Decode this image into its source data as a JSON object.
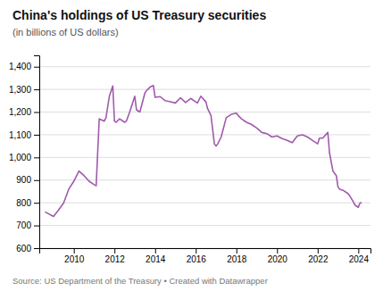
{
  "chart_data": {
    "type": "line",
    "title": "China's holdings of US Treasury securities",
    "subtitle": "(in billions of US dollars)",
    "source": "Source: US Department of the Treasury • Created with Datawrapper",
    "color": "#a05aad",
    "grid": true,
    "ylim": [
      600,
      1450
    ],
    "yticks": [
      600,
      700,
      800,
      900,
      {
        "value": 1000,
        "label": "1,000"
      },
      {
        "value": 1100,
        "label": "1,100"
      },
      {
        "value": 1200,
        "label": "1,200"
      },
      {
        "value": 1300,
        "label": "1,300"
      },
      {
        "value": 1400,
        "label": "1,400"
      }
    ],
    "xlim": [
      2008.3,
      2024.6
    ],
    "xticks": [
      2010,
      2012,
      2014,
      2016,
      2018,
      2020,
      2022,
      2024
    ],
    "x": [
      2008.583,
      2009.0,
      2009.25,
      2009.5,
      2009.75,
      2010.0,
      2010.25,
      2010.5,
      2010.75,
      2011.0,
      2011.1,
      2011.25,
      2011.5,
      2011.583,
      2011.75,
      2011.917,
      2012.0,
      2012.083,
      2012.25,
      2012.5,
      2012.583,
      2012.75,
      2013.0,
      2013.083,
      2013.25,
      2013.5,
      2013.583,
      2013.75,
      2013.917,
      2014.0,
      2014.25,
      2014.5,
      2014.75,
      2015.0,
      2015.25,
      2015.5,
      2015.75,
      2016.0,
      2016.083,
      2016.25,
      2016.5,
      2016.583,
      2016.75,
      2016.917,
      2017.0,
      2017.083,
      2017.25,
      2017.5,
      2017.75,
      2018.0,
      2018.083,
      2018.25,
      2018.5,
      2018.75,
      2019.0,
      2019.25,
      2019.5,
      2019.75,
      2020.0,
      2020.25,
      2020.5,
      2020.75,
      2021.0,
      2021.25,
      2021.5,
      2021.75,
      2022.0,
      2022.083,
      2022.25,
      2022.5,
      2022.583,
      2022.75,
      2022.917,
      2023.0,
      2023.083,
      2023.25,
      2023.5,
      2023.583,
      2023.75,
      2023.833,
      2024.0,
      2024.083,
      2024.167
    ],
    "values": [
      760,
      740,
      768,
      800,
      860,
      895,
      940,
      920,
      895,
      880,
      875,
      1170,
      1160,
      1175,
      1270,
      1315,
      1160,
      1155,
      1170,
      1155,
      1160,
      1200,
      1270,
      1210,
      1200,
      1285,
      1295,
      1310,
      1317,
      1265,
      1268,
      1250,
      1245,
      1240,
      1263,
      1242,
      1260,
      1245,
      1240,
      1270,
      1245,
      1215,
      1185,
      1060,
      1050,
      1060,
      1090,
      1175,
      1190,
      1195,
      1185,
      1170,
      1155,
      1145,
      1130,
      1110,
      1105,
      1090,
      1095,
      1083,
      1075,
      1065,
      1095,
      1100,
      1090,
      1075,
      1060,
      1085,
      1085,
      1110,
      1020,
      940,
      920,
      870,
      860,
      855,
      840,
      830,
      805,
      790,
      780,
      800,
      800
    ]
  }
}
